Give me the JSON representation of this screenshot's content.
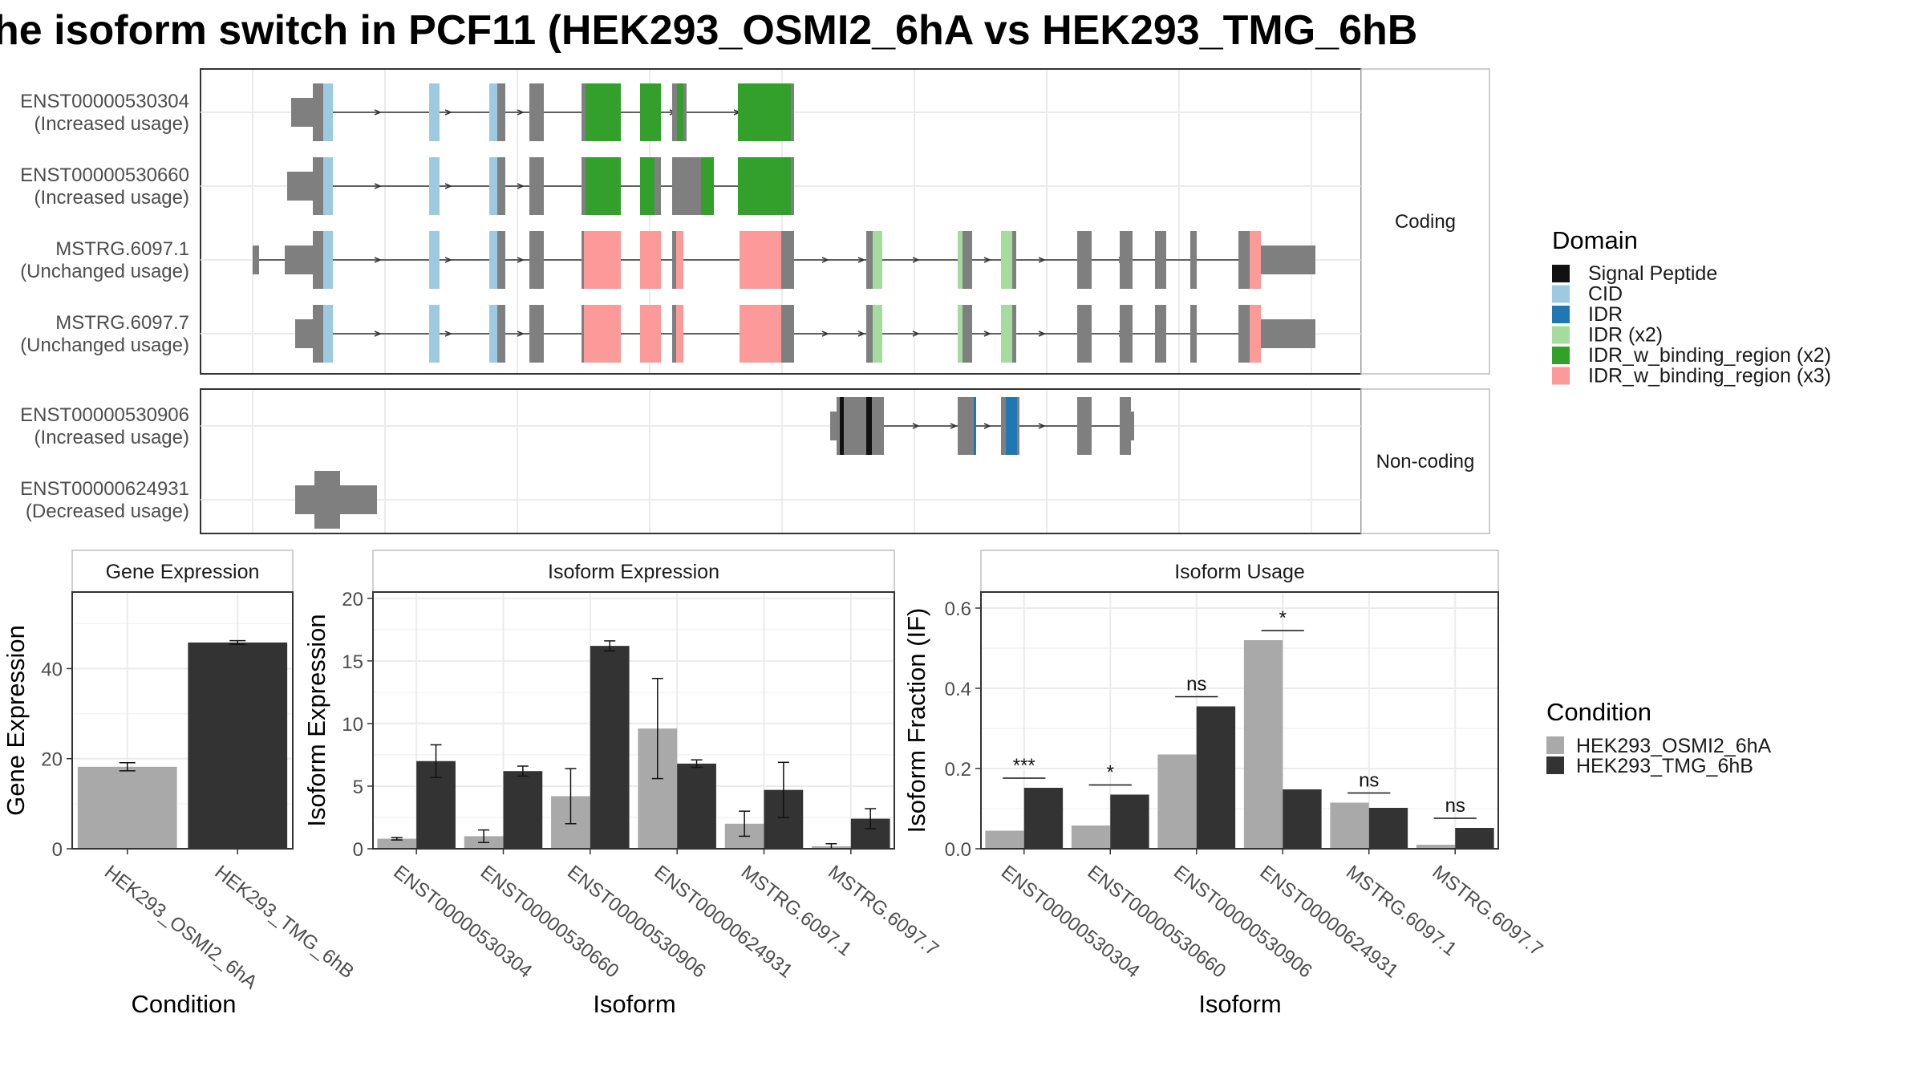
{
  "title": "he isoform switch in PCF11 (HEK293_OSMI2_6hA vs HEK293_TMG_6hB",
  "colors": {
    "exon": "#7f7f7f",
    "cond_a": "#a9a9a9",
    "cond_b": "#333333",
    "grid": "#ebebeb",
    "panel_border": "#333333",
    "strip_fill": "#ffffff",
    "strip_border": "#bdbdbd"
  },
  "structure": {
    "facets": [
      "Coding",
      "Non-coding"
    ],
    "domain_legend": {
      "title": "Domain",
      "entries": [
        {
          "label": "Signal Peptide",
          "color": "#111111"
        },
        {
          "label": "CID",
          "color": "#9ecae1"
        },
        {
          "label": "IDR",
          "color": "#1f78b4"
        },
        {
          "label": "IDR (x2)",
          "color": "#a6dba0"
        },
        {
          "label": "IDR_w_binding_region (x2)",
          "color": "#33a02c"
        },
        {
          "label": "IDR_w_binding_region (x3)",
          "color": "#fb9a99"
        }
      ]
    },
    "transcripts": [
      {
        "id": "ENST00000530304",
        "status": "(Increased usage)",
        "facet": "Coding"
      },
      {
        "id": "ENST00000530660",
        "status": "(Increased usage)",
        "facet": "Coding"
      },
      {
        "id": "MSTRG.6097.1",
        "status": "(Unchanged usage)",
        "facet": "Coding"
      },
      {
        "id": "MSTRG.6097.7",
        "status": "(Unchanged usage)",
        "facet": "Coding"
      },
      {
        "id": "ENST00000530906",
        "status": "(Increased usage)",
        "facet": "Non-coding"
      },
      {
        "id": "ENST00000624931",
        "status": "(Decreased usage)",
        "facet": "Non-coding"
      }
    ]
  },
  "condition_legend": {
    "title": "Condition",
    "entries": [
      "HEK293_OSMI2_6hA",
      "HEK293_TMG_6hB"
    ]
  },
  "chart_data": [
    {
      "type": "bar",
      "title": "Gene Expression",
      "xlabel": "Condition",
      "ylabel": "Gene Expression",
      "categories": [
        "HEK293_OSMI2_6hA",
        "HEK293_TMG_6hB"
      ],
      "values": [
        18.2,
        45.8
      ],
      "errors": [
        0.9,
        0.4
      ],
      "ylim": [
        0,
        57
      ],
      "yticks": [
        0,
        20,
        40
      ]
    },
    {
      "type": "bar",
      "title": "Isoform Expression",
      "xlabel": "Isoform",
      "ylabel": "Isoform Expression",
      "categories": [
        "ENST00000530304",
        "ENST00000530660",
        "ENST00000530906",
        "ENST00000624931",
        "MSTRG.6097.1",
        "MSTRG.6097.7"
      ],
      "series": [
        {
          "name": "HEK293_OSMI2_6hA",
          "values": [
            0.8,
            1.0,
            4.2,
            9.6,
            2.0,
            0.2
          ],
          "errors": [
            0.1,
            0.5,
            2.2,
            4.0,
            1.0,
            0.2
          ]
        },
        {
          "name": "HEK293_TMG_6hB",
          "values": [
            7.0,
            6.2,
            16.2,
            6.8,
            4.7,
            2.4
          ],
          "errors": [
            1.3,
            0.4,
            0.4,
            0.3,
            2.2,
            0.8
          ]
        }
      ],
      "ylim": [
        0,
        20.5
      ],
      "yticks": [
        0,
        5,
        10,
        15,
        20
      ]
    },
    {
      "type": "bar",
      "title": "Isoform Usage",
      "xlabel": "Isoform",
      "ylabel": "Isoform Fraction (IF)",
      "categories": [
        "ENST00000530304",
        "ENST00000530660",
        "ENST00000530906",
        "ENST00000624931",
        "MSTRG.6097.1",
        "MSTRG.6097.7"
      ],
      "series": [
        {
          "name": "HEK293_OSMI2_6hA",
          "values": [
            0.045,
            0.058,
            0.235,
            0.52,
            0.115,
            0.01
          ]
        },
        {
          "name": "HEK293_TMG_6hB",
          "values": [
            0.152,
            0.135,
            0.355,
            0.148,
            0.102,
            0.052
          ]
        }
      ],
      "significance": [
        "***",
        "*",
        "ns",
        "*",
        "ns",
        "ns"
      ],
      "ylim": [
        0,
        0.64
      ],
      "yticks": [
        "0.0",
        "0.2",
        "0.4",
        "0.6"
      ]
    }
  ]
}
